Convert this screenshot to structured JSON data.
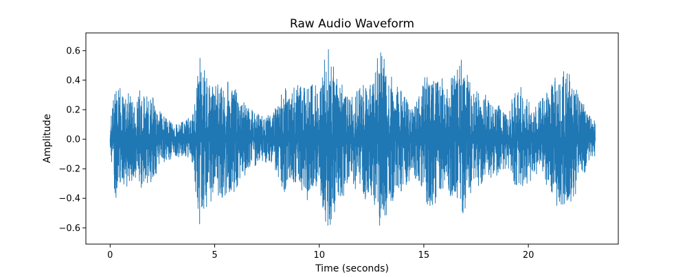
{
  "chart_data": {
    "type": "line",
    "title": "Raw Audio Waveform",
    "xlabel": "Time (seconds)",
    "ylabel": "Amplitude",
    "xlim": [
      -1.16,
      24.3
    ],
    "ylim": [
      -0.71,
      0.72
    ],
    "xticks": [
      0,
      5,
      10,
      15,
      20
    ],
    "xtick_labels": [
      "0",
      "5",
      "10",
      "15",
      "20"
    ],
    "yticks": [
      -0.6,
      -0.4,
      -0.2,
      0.0,
      0.2,
      0.4,
      0.6
    ],
    "ytick_labels": [
      "−0.6",
      "−0.4",
      "−0.2",
      "0.0",
      "0.2",
      "0.4",
      "0.6"
    ],
    "grid": false,
    "series": [
      {
        "color": "#1f77b4",
        "duration_seconds": 23.2,
        "envelope": {
          "time_seconds": [
            0.0,
            0.1,
            0.25,
            0.5,
            1.0,
            1.5,
            2.0,
            2.5,
            3.0,
            3.5,
            4.0,
            4.15,
            4.5,
            5.0,
            5.5,
            6.0,
            6.5,
            7.0,
            7.5,
            8.0,
            8.2,
            8.5,
            9.0,
            9.5,
            10.0,
            10.4,
            10.8,
            11.5,
            12.0,
            12.5,
            12.9,
            13.5,
            14.0,
            14.5,
            15.0,
            15.5,
            16.0,
            16.5,
            16.8,
            17.3,
            18.0,
            18.5,
            19.0,
            19.5,
            20.0,
            20.5,
            21.0,
            21.2,
            21.5,
            22.0,
            22.5,
            23.0,
            23.2
          ],
          "max_amplitude": [
            0.04,
            0.3,
            0.41,
            0.35,
            0.3,
            0.36,
            0.3,
            0.17,
            0.13,
            0.12,
            0.2,
            0.65,
            0.5,
            0.38,
            0.42,
            0.35,
            0.24,
            0.18,
            0.16,
            0.24,
            0.4,
            0.32,
            0.38,
            0.42,
            0.36,
            0.65,
            0.48,
            0.3,
            0.4,
            0.44,
            0.62,
            0.42,
            0.34,
            0.25,
            0.42,
            0.48,
            0.4,
            0.44,
            0.55,
            0.35,
            0.3,
            0.25,
            0.2,
            0.38,
            0.3,
            0.25,
            0.35,
            0.5,
            0.48,
            0.45,
            0.3,
            0.14,
            0.13
          ]
        }
      }
    ],
    "annotations": []
  }
}
